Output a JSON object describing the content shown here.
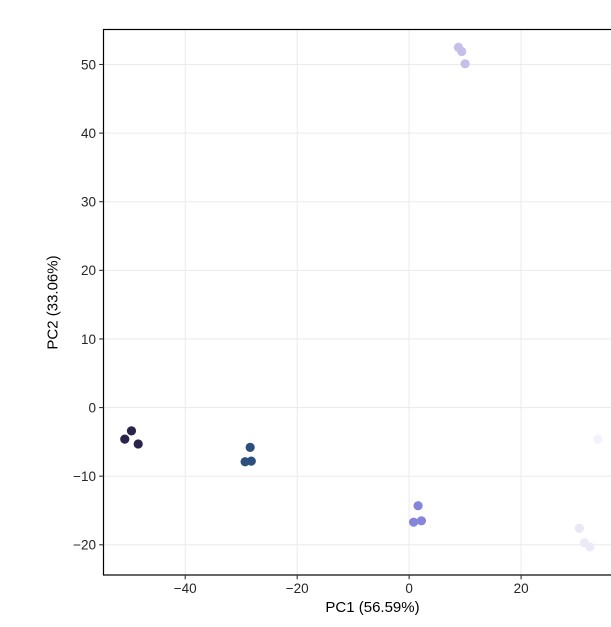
{
  "chart_data": {
    "type": "scatter",
    "title": "",
    "xlabel": "PC1 (56.59%)",
    "ylabel": "PC2 (33.06%)",
    "xlim": [
      -54.6,
      41.6
    ],
    "ylim": [
      -24.4,
      55.1
    ],
    "x_ticks": [
      -40,
      -20,
      0,
      20,
      40
    ],
    "x_tick_labels": [
      "−40",
      "−20",
      "0",
      "20",
      "40"
    ],
    "y_ticks": [
      -20,
      -10,
      0,
      10,
      20,
      30,
      40,
      50
    ],
    "y_tick_labels": [
      "−20",
      "−10",
      "0",
      "10",
      "20",
      "30",
      "40",
      "50"
    ],
    "grid": "major-only",
    "legend_position": "none",
    "colors": {
      "panel_background": "#ffffff",
      "grid": "#ebebeb",
      "panel_border": "#000000",
      "tick_mark": "#333333",
      "axis_text": "#262626"
    },
    "point_style": {
      "shape": "circle",
      "radius_px": 4.6
    },
    "points": [
      {
        "x": -49.6,
        "y": -3.4,
        "color": "#2a234b"
      },
      {
        "x": -50.8,
        "y": -4.6,
        "color": "#2a234b"
      },
      {
        "x": -48.4,
        "y": -5.3,
        "color": "#2a234b"
      },
      {
        "x": -28.4,
        "y": -5.8,
        "color": "#2d4f80"
      },
      {
        "x": -29.3,
        "y": -7.9,
        "color": "#2d4f80"
      },
      {
        "x": -28.2,
        "y": -7.8,
        "color": "#2d4f80"
      },
      {
        "x": 1.6,
        "y": -14.3,
        "color": "#8585da"
      },
      {
        "x": 0.8,
        "y": -16.7,
        "color": "#8585da"
      },
      {
        "x": 2.2,
        "y": -16.5,
        "color": "#8585da"
      },
      {
        "x": 8.8,
        "y": 52.5,
        "color": "#c6bfe9"
      },
      {
        "x": 9.4,
        "y": 51.9,
        "color": "#c6bfe9"
      },
      {
        "x": 10.0,
        "y": 50.1,
        "color": "#c6bfe9"
      },
      {
        "x": 30.4,
        "y": -17.6,
        "color": "#e9e6f6"
      },
      {
        "x": 31.3,
        "y": -19.7,
        "color": "#edeaf8"
      },
      {
        "x": 32.3,
        "y": -20.3,
        "color": "#edeaf8"
      },
      {
        "x": 33.7,
        "y": -4.6,
        "color": "#f3f1fb"
      }
    ]
  }
}
